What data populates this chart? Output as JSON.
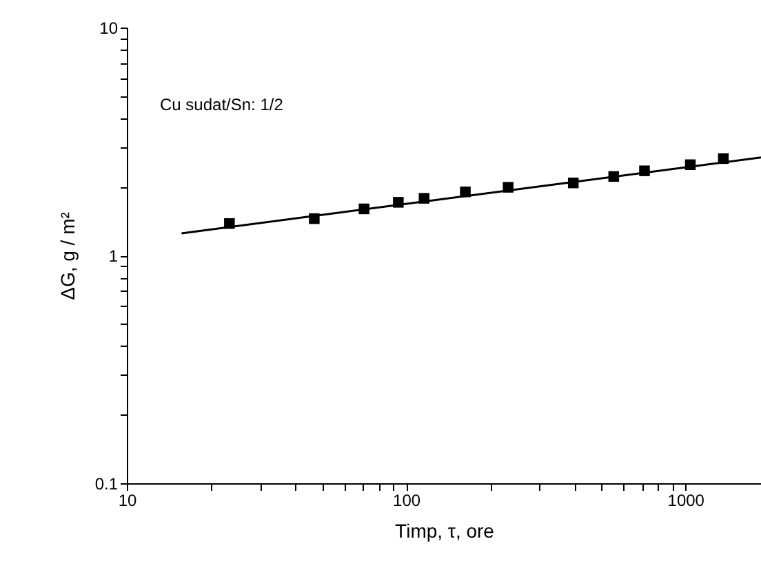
{
  "chart_data": {
    "type": "scatter",
    "xlabel": "Timp, τ, ore",
    "ylabel": "ΔG, g / m²",
    "annotations": [
      "Cu sudat/Sn: 1/2"
    ],
    "log": "xy",
    "grid": false,
    "xlim": [
      10,
      1866
    ],
    "ylim": [
      0.1,
      10
    ],
    "xticks": [
      10,
      {
        "value": 20,
        "label": null
      },
      {
        "value": 30,
        "label": null
      },
      {
        "value": 40,
        "label": null
      },
      {
        "value": 50,
        "label": null
      },
      {
        "value": 60,
        "label": null
      },
      {
        "value": 70,
        "label": null
      },
      {
        "value": 80,
        "label": null
      },
      {
        "value": 90,
        "label": null
      },
      100,
      {
        "value": 200,
        "label": null
      },
      {
        "value": 300,
        "label": null
      },
      {
        "value": 400,
        "label": null
      },
      {
        "value": 500,
        "label": null
      },
      {
        "value": 600,
        "label": null
      },
      {
        "value": 700,
        "label": null
      },
      {
        "value": 800,
        "label": null
      },
      {
        "value": 900,
        "label": null
      },
      1000
    ],
    "yticks": [
      0.1,
      {
        "value": 0.2,
        "label": null
      },
      {
        "value": 0.3,
        "label": null
      },
      {
        "value": 0.4,
        "label": null
      },
      {
        "value": 0.5,
        "label": null
      },
      {
        "value": 0.6,
        "label": null
      },
      {
        "value": 0.7,
        "label": null
      },
      {
        "value": 0.8,
        "label": null
      },
      {
        "value": 0.9,
        "label": null
      },
      1,
      {
        "value": 2,
        "label": null
      },
      {
        "value": 3,
        "label": null
      },
      {
        "value": 4,
        "label": null
      },
      {
        "value": 5,
        "label": null
      },
      {
        "value": 6,
        "label": null
      },
      {
        "value": 7,
        "label": null
      },
      {
        "value": 8,
        "label": null
      },
      {
        "value": 9,
        "label": null
      },
      10
    ],
    "series": [
      {
        "marker": "square",
        "color": "#000000",
        "x": [
          23.3,
          46.9,
          70.7,
          93.8,
          116,
          163,
          232,
          397,
          554,
          714,
          1042,
          1368
        ],
        "values": [
          1.38,
          1.45,
          1.6,
          1.71,
          1.78,
          1.9,
          1.99,
          2.08,
          2.22,
          2.35,
          2.5,
          2.66
        ]
      },
      {
        "type": "line",
        "color": "#000000",
        "line_style": "solid",
        "x": [
          15.7,
          1866
        ],
        "values": [
          1.25,
          2.69
        ]
      }
    ]
  }
}
